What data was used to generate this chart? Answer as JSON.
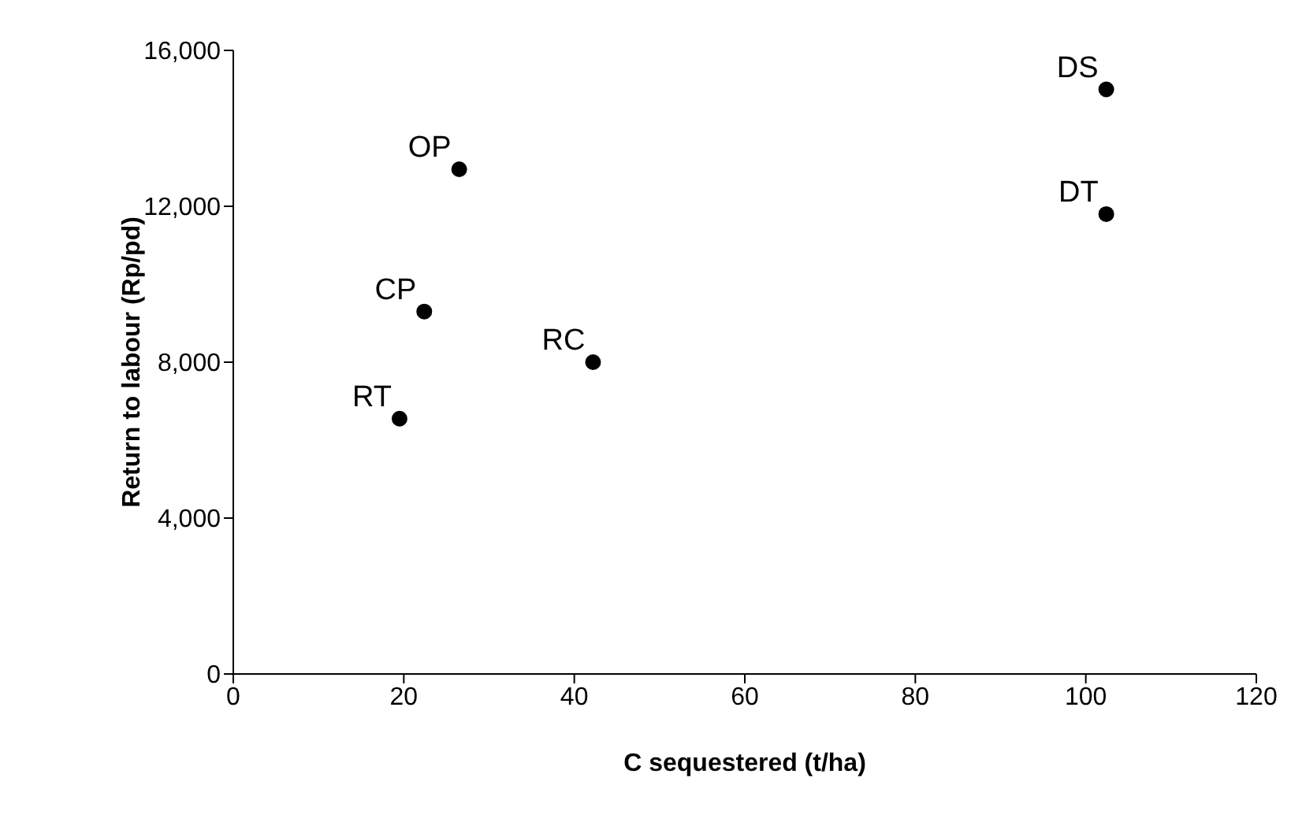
{
  "chart_data": {
    "type": "scatter",
    "xlabel": "C sequestered (t/ha)",
    "ylabel": "Return to labour (Rp/pd)",
    "xlim": [
      0,
      120
    ],
    "xticks": [
      0,
      20,
      40,
      60,
      80,
      100,
      120
    ],
    "ylim": [
      0,
      16000
    ],
    "yticks": [
      0,
      {
        "value": 4000,
        "label": "4,000"
      },
      {
        "value": 8000,
        "label": "8,000"
      },
      {
        "value": 12000,
        "label": "12,000"
      },
      {
        "value": 16000,
        "label": "16,000"
      }
    ],
    "grid": false,
    "legend": false,
    "marker": "circle",
    "series": [
      {
        "name": "OP",
        "color": "#000000",
        "x": [
          26.5
        ],
        "values": [
          12950
        ]
      },
      {
        "name": "CP",
        "color": "#000000",
        "x": [
          22.4
        ],
        "values": [
          9300
        ]
      },
      {
        "name": "RC",
        "color": "#000000",
        "x": [
          42.2
        ],
        "values": [
          8000
        ]
      },
      {
        "name": "RT",
        "color": "#000000",
        "x": [
          19.5
        ],
        "values": [
          6550
        ]
      },
      {
        "name": "DS",
        "color": "#000000",
        "x": [
          102.4
        ],
        "values": [
          15000
        ]
      },
      {
        "name": "DT",
        "color": "#000000",
        "x": [
          102.4
        ],
        "values": [
          11800
        ]
      }
    ]
  }
}
